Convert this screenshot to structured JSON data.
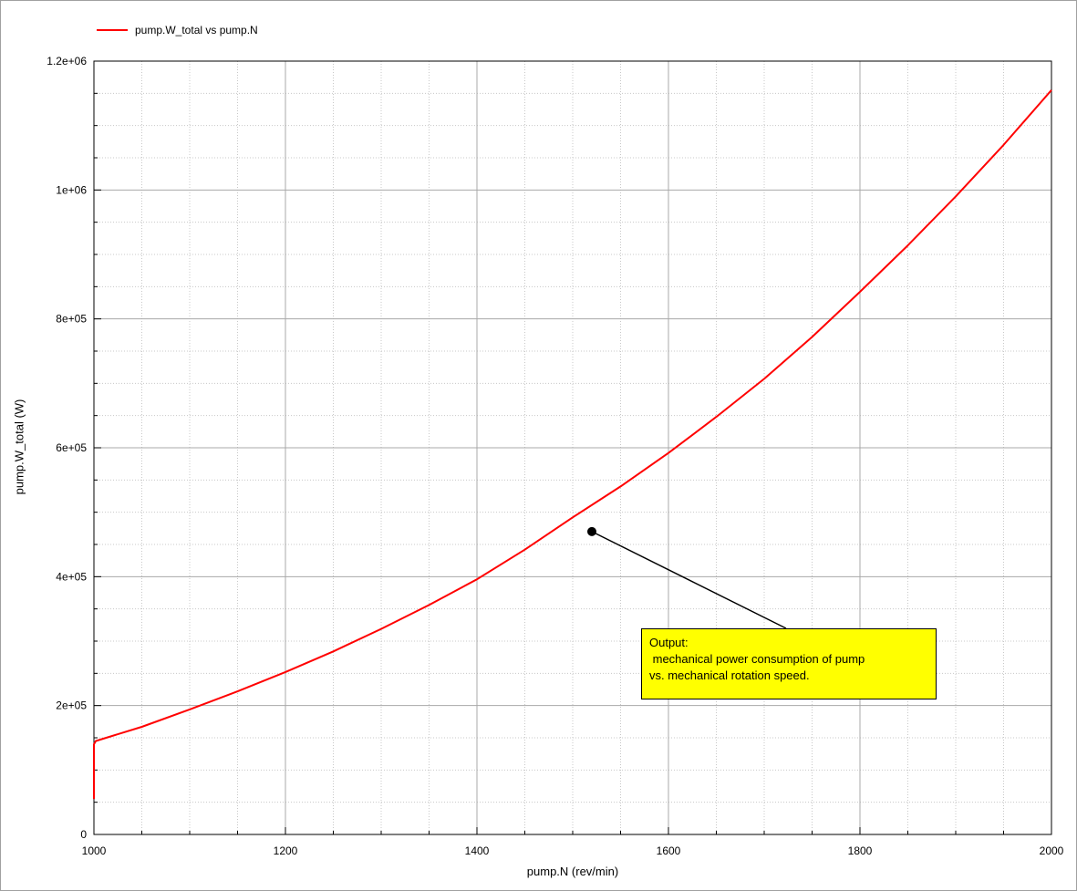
{
  "chart_data": {
    "type": "line",
    "title": "",
    "xlabel": "pump.N (rev/min)",
    "ylabel": "pump.W_total (W)",
    "xlim": [
      1000,
      2000
    ],
    "ylim": [
      0,
      1200000
    ],
    "x_ticks": [
      "1000",
      "1200",
      "1400",
      "1600",
      "1800",
      "2000"
    ],
    "y_ticks": [
      "0",
      "2e+05",
      "4e+05",
      "6e+05",
      "8e+05",
      "1e+06",
      "1.2e+06"
    ],
    "grid": true,
    "legend_position": "top-left",
    "series": [
      {
        "name": "pump.W_total vs pump.N",
        "color": "#ff0000",
        "x": [
          1000,
          1000,
          1000,
          1002,
          1050,
          1100,
          1150,
          1200,
          1250,
          1300,
          1350,
          1400,
          1450,
          1500,
          1550,
          1600,
          1650,
          1700,
          1750,
          1800,
          1850,
          1900,
          1950,
          2000
        ],
        "y": [
          55000,
          120000,
          140000,
          145000,
          167000,
          194000,
          222000,
          252000,
          284000,
          319000,
          356000,
          396000,
          442000,
          492000,
          540000,
          592000,
          648000,
          707000,
          772000,
          842000,
          914000,
          990000,
          1070000,
          1155000
        ]
      }
    ],
    "annotation": {
      "text": "Output:\n mechanical power consumption of pump\nvs. mechanical rotation speed.",
      "point": {
        "x": 1520,
        "y": 470000
      },
      "background": "#ffff00"
    }
  }
}
